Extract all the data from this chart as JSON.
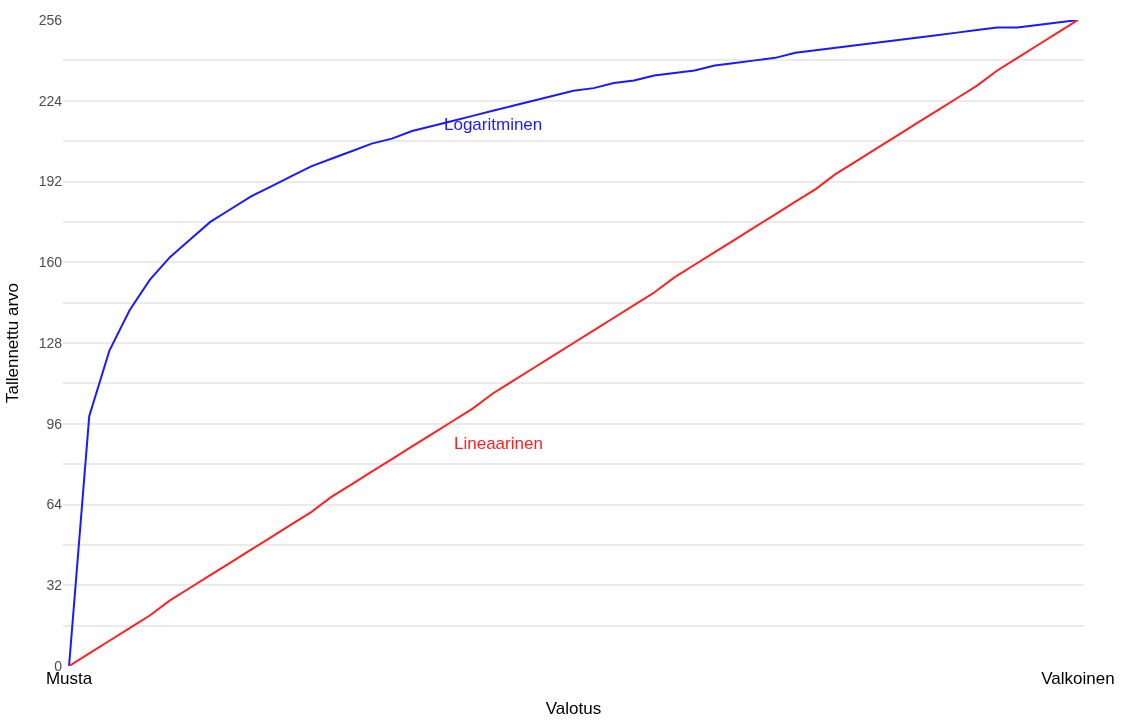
{
  "chart_data": {
    "type": "line",
    "xlabel": "Valotus",
    "ylabel": "Tallennettu arvo",
    "categories": [
      "Musta",
      null,
      null,
      null,
      null,
      null,
      null,
      null,
      null,
      null,
      null,
      null,
      null,
      null,
      null,
      null,
      null,
      null,
      null,
      null,
      null,
      null,
      null,
      null,
      null,
      null,
      null,
      null,
      null,
      null,
      null,
      null,
      null,
      null,
      null,
      null,
      null,
      null,
      null,
      null,
      null,
      null,
      null,
      null,
      null,
      null,
      null,
      null,
      null,
      null,
      "Valkoinen"
    ],
    "ylim": [
      0,
      256
    ],
    "yticks": [
      0,
      {
        "value": 16,
        "label": null
      },
      32,
      {
        "value": 48,
        "label": null
      },
      64,
      {
        "value": 80,
        "label": null
      },
      96,
      {
        "value": 112,
        "label": null
      },
      128,
      {
        "value": 144,
        "label": null
      },
      160,
      {
        "value": 176,
        "label": null
      },
      192,
      {
        "value": 208,
        "label": null
      },
      224,
      {
        "value": 240,
        "label": null
      },
      256
    ],
    "grid": "y",
    "legend": false,
    "series": [
      {
        "name": "Logaritminen",
        "color": "#1a1aff",
        "values": [
          0,
          99,
          125,
          141,
          153,
          162,
          169,
          176,
          181,
          186,
          190,
          194,
          198,
          201,
          204,
          207,
          209,
          212,
          214,
          216,
          218,
          220,
          222,
          224,
          226,
          228,
          229,
          231,
          232,
          234,
          235,
          236,
          238,
          239,
          240,
          241,
          243,
          244,
          245,
          246,
          247,
          248,
          249,
          250,
          251,
          252,
          253,
          253,
          254,
          255,
          256
        ]
      },
      {
        "name": "Lineaarinen",
        "color": "#ff2020",
        "values": [
          0,
          5,
          10,
          15,
          20,
          26,
          31,
          36,
          41,
          46,
          51,
          56,
          61,
          67,
          72,
          77,
          82,
          87,
          92,
          97,
          102,
          108,
          113,
          118,
          123,
          128,
          133,
          138,
          143,
          148,
          154,
          159,
          164,
          169,
          174,
          179,
          184,
          189,
          195,
          200,
          205,
          210,
          215,
          220,
          225,
          230,
          236,
          241,
          246,
          251,
          256
        ]
      }
    ]
  }
}
